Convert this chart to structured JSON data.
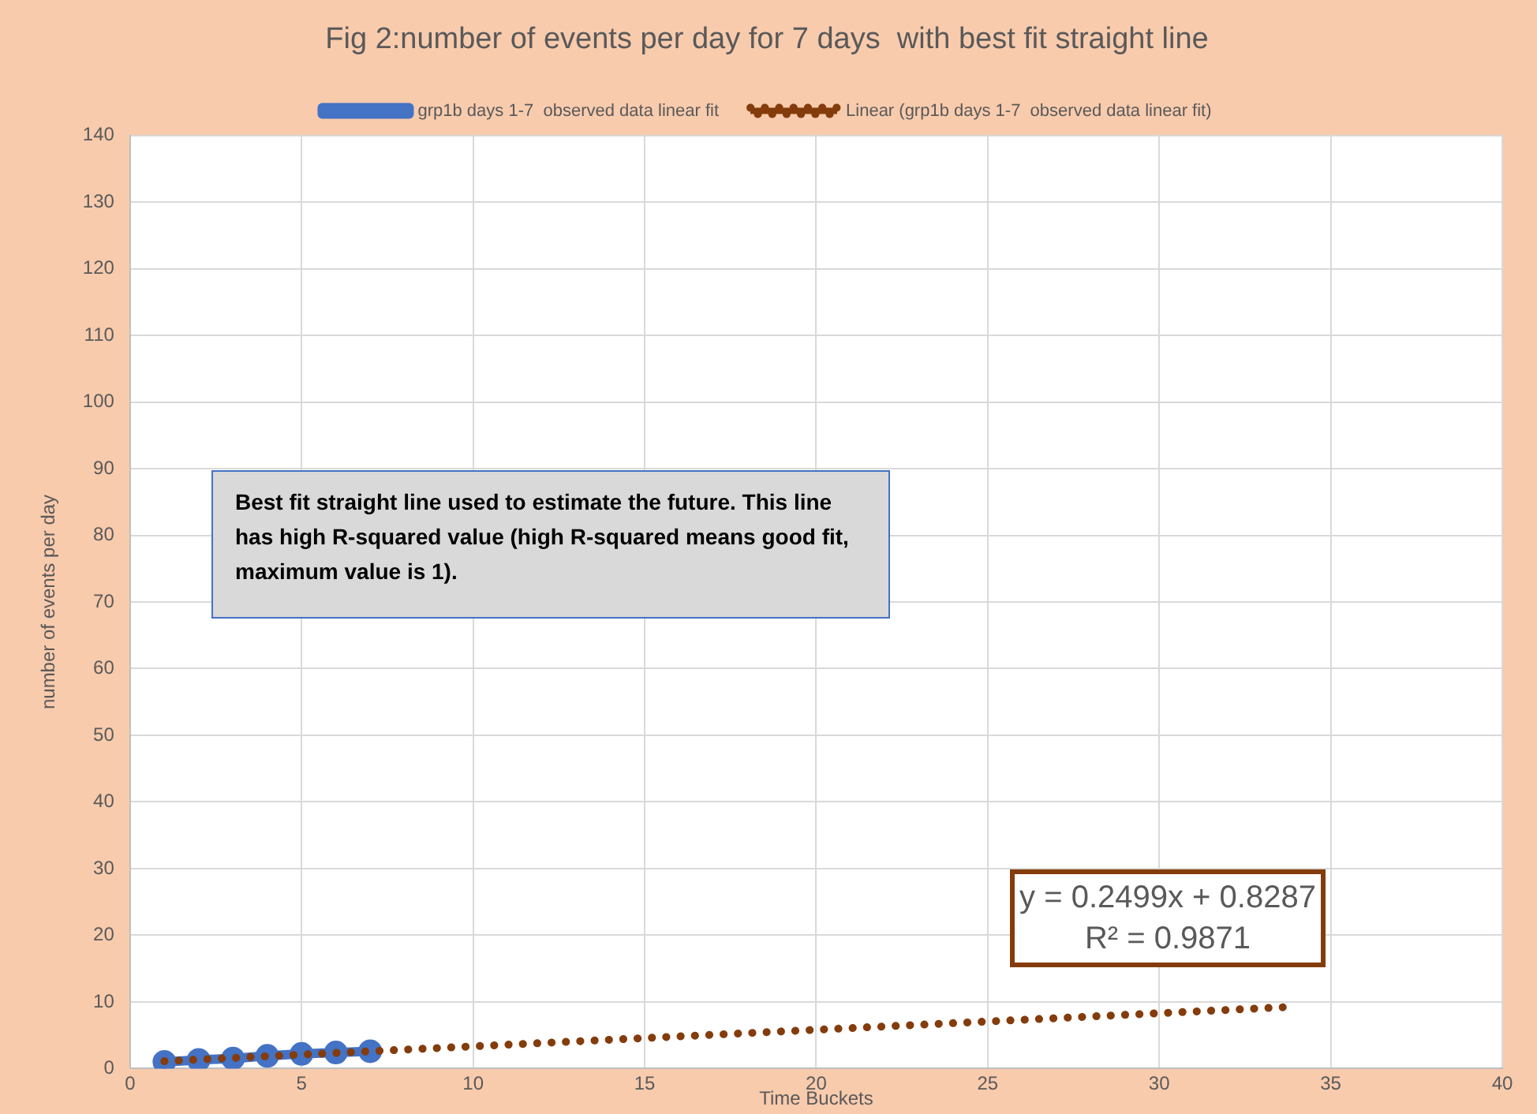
{
  "chart_data": {
    "type": "line",
    "title": "Fig 2:number of events per day for 7 days  with best fit straight line",
    "xlabel": "Time Buckets",
    "ylabel": "number of events per day",
    "xlim": [
      0,
      40
    ],
    "xticks": [
      0,
      5,
      10,
      15,
      20,
      25,
      30,
      35,
      40
    ],
    "ylim": [
      0,
      140
    ],
    "yticks": [
      0,
      10,
      20,
      30,
      40,
      50,
      60,
      70,
      80,
      90,
      100,
      110,
      120,
      130,
      140
    ],
    "grid": true,
    "legend": "top",
    "marker": "circle",
    "series": [
      {
        "name": "grp1b days 1-7  observed data linear fit",
        "color": "#4472c4",
        "x": [
          1,
          2,
          3,
          4,
          5,
          6,
          7
        ],
        "values": [
          1.0,
          1.3,
          1.5,
          1.9,
          2.2,
          2.4,
          2.6
        ]
      },
      {
        "name": "Linear (grp1b days 1-7  observed data linear fit)",
        "color": "#843c0c",
        "line_style": "dotted",
        "marker": "none",
        "x": [
          1,
          33.6
        ],
        "values": [
          1.1,
          9.2
        ]
      }
    ],
    "annotations": [
      "Best fit straight line used to estimate the future.  This line has high R-squared value (high R-squared means good fit, maximum value is 1).",
      "y = 0.2499x + 0.8287",
      "R² = 0.9871"
    ]
  }
}
